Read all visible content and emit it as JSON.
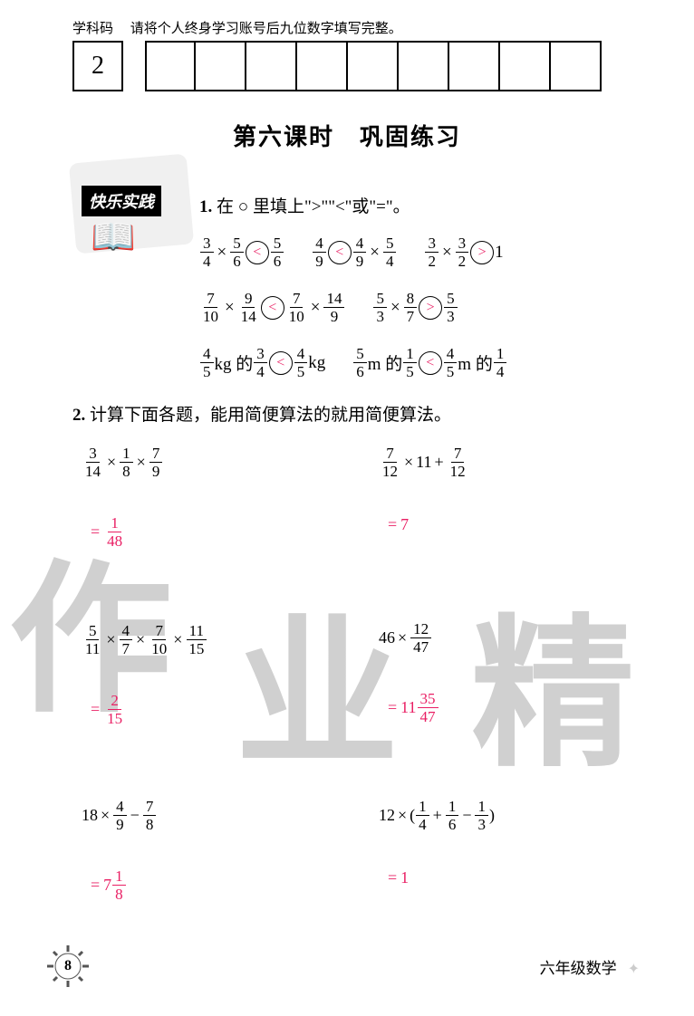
{
  "header": {
    "subject_code_label": "学科码",
    "instruction": "请将个人终身学习账号后九位数字填写完整。",
    "first_box_value": "2",
    "num_boxes": 9
  },
  "title": "第六课时　巩固练习",
  "badge": {
    "text": "快乐实践"
  },
  "q1": {
    "num": "1.",
    "prompt": "在 ○ 里填上\">\"\"<\"或\"=\"。",
    "rows": [
      [
        {
          "left": [
            {
              "n": "3",
              "d": "4"
            },
            "×",
            {
              "n": "5",
              "d": "6"
            }
          ],
          "op": "<",
          "right": [
            {
              "n": "5",
              "d": "6"
            }
          ]
        },
        {
          "left": [
            {
              "n": "4",
              "d": "9"
            }
          ],
          "op": "<",
          "right": [
            {
              "n": "4",
              "d": "9"
            },
            "×",
            {
              "n": "5",
              "d": "4"
            }
          ]
        },
        {
          "left": [
            {
              "n": "3",
              "d": "2"
            },
            "×",
            {
              "n": "3",
              "d": "2"
            }
          ],
          "op": ">",
          "right": [
            "1"
          ]
        }
      ],
      [
        {
          "left": [
            {
              "n": "7",
              "d": "10"
            },
            "×",
            {
              "n": "9",
              "d": "14"
            }
          ],
          "op": "<",
          "right": [
            {
              "n": "7",
              "d": "10"
            },
            "×",
            {
              "n": "14",
              "d": "9"
            }
          ]
        },
        {
          "left": [
            {
              "n": "5",
              "d": "3"
            },
            "×",
            {
              "n": "8",
              "d": "7"
            }
          ],
          "op": ">",
          "right": [
            {
              "n": "5",
              "d": "3"
            }
          ]
        }
      ],
      [
        {
          "left": [
            {
              "n": "4",
              "d": "5"
            },
            " kg 的 ",
            {
              "n": "3",
              "d": "4"
            }
          ],
          "op": "<",
          "right": [
            {
              "n": "4",
              "d": "5"
            },
            " kg"
          ]
        },
        {
          "left": [
            {
              "n": "5",
              "d": "6"
            },
            " m 的 ",
            {
              "n": "1",
              "d": "5"
            }
          ],
          "op": "<",
          "right": [
            {
              "n": "4",
              "d": "5"
            },
            " m 的 ",
            {
              "n": "1",
              "d": "4"
            }
          ]
        }
      ]
    ]
  },
  "q2": {
    "num": "2.",
    "prompt": "计算下面各题，能用简便算法的就用简便算法。",
    "items": [
      {
        "problem": [
          {
            "n": "3",
            "d": "14"
          },
          "×",
          {
            "n": "1",
            "d": "8"
          },
          "×",
          {
            "n": "7",
            "d": "9"
          }
        ],
        "answer_prefix": "=",
        "answer": [
          {
            "n": "1",
            "d": "48"
          }
        ]
      },
      {
        "problem": [
          {
            "n": "7",
            "d": "12"
          },
          "×",
          "11",
          "+",
          {
            "n": "7",
            "d": "12"
          }
        ],
        "answer_prefix": "=",
        "answer": [
          "7"
        ]
      },
      {
        "problem": [
          {
            "n": "5",
            "d": "11"
          },
          "×",
          {
            "n": "4",
            "d": "7"
          },
          "×",
          {
            "n": "7",
            "d": "10"
          },
          "×",
          {
            "n": "11",
            "d": "15"
          }
        ],
        "answer_prefix": "=",
        "answer": [
          {
            "n": "2",
            "d": "15"
          }
        ]
      },
      {
        "problem": [
          "46",
          "×",
          {
            "n": "12",
            "d": "47"
          }
        ],
        "answer_prefix": "=",
        "answer": [
          "11",
          {
            "n": "35",
            "d": "47"
          }
        ]
      },
      {
        "problem": [
          "18",
          "×",
          {
            "n": "4",
            "d": "9"
          },
          "−",
          {
            "n": "7",
            "d": "8"
          }
        ],
        "answer_prefix": "=",
        "answer": [
          "7",
          {
            "n": "1",
            "d": "8"
          }
        ]
      },
      {
        "problem": [
          "12",
          "×",
          "(",
          {
            "n": "1",
            "d": "4"
          },
          "+",
          {
            "n": "1",
            "d": "6"
          },
          "−",
          {
            "n": "1",
            "d": "3"
          },
          ")"
        ],
        "answer_prefix": "=",
        "answer": [
          "1"
        ]
      }
    ]
  },
  "footer": {
    "page": "8",
    "label": "六年级数学"
  },
  "colors": {
    "answer_color": "#e91e63",
    "watermark_color": "#d0d0d0",
    "text_color": "#000000"
  }
}
